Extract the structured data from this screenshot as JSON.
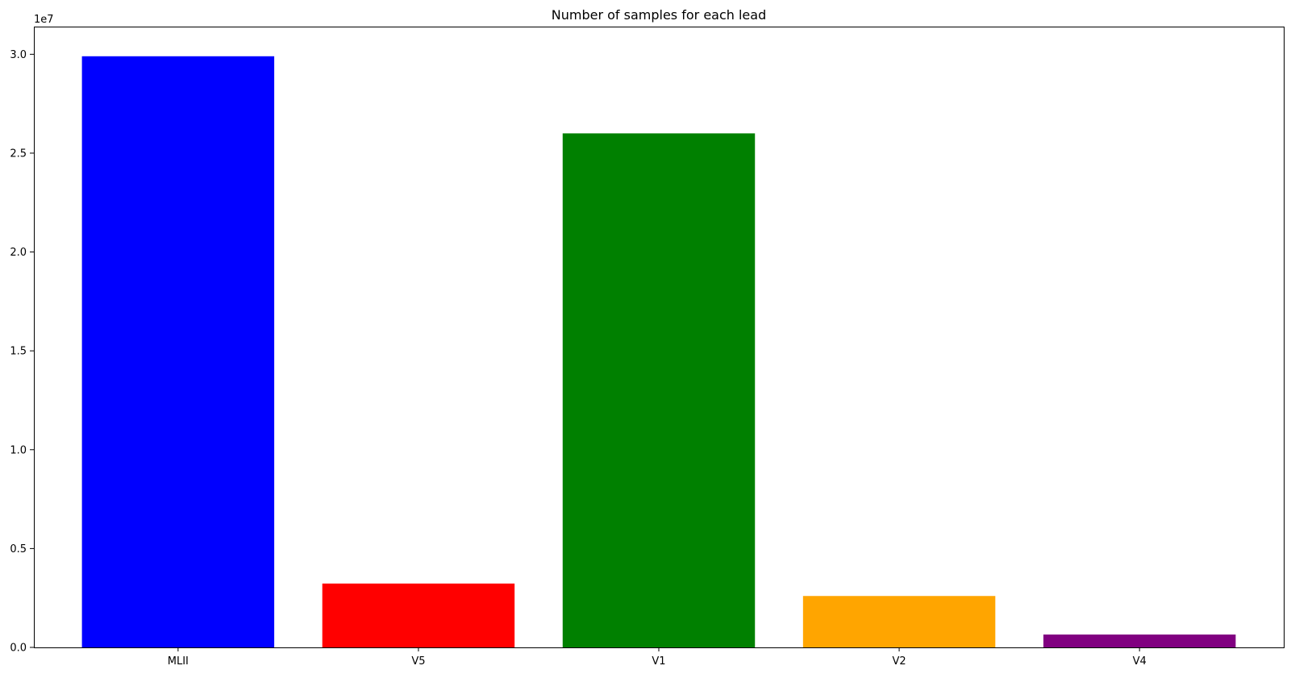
{
  "chart_data": {
    "type": "bar",
    "title": "Number of samples for each lead",
    "xlabel": "",
    "ylabel": "",
    "categories": [
      "MLII",
      "V5",
      "V1",
      "V2",
      "V4"
    ],
    "values": [
      29900000,
      3230000,
      26000000,
      2600000,
      650000
    ],
    "colors": [
      "#0000ff",
      "#ff0000",
      "#008000",
      "#ffa500",
      "#800080"
    ],
    "ylim": [
      0,
      31400000
    ],
    "yticks": [
      0,
      5000000,
      10000000,
      15000000,
      20000000,
      25000000,
      30000000
    ],
    "ytick_labels": [
      "0.0",
      "0.5",
      "1.0",
      "1.5",
      "2.0",
      "2.5",
      "3.0"
    ],
    "y_offset_label": "1e7",
    "grid": false,
    "legend": false
  }
}
